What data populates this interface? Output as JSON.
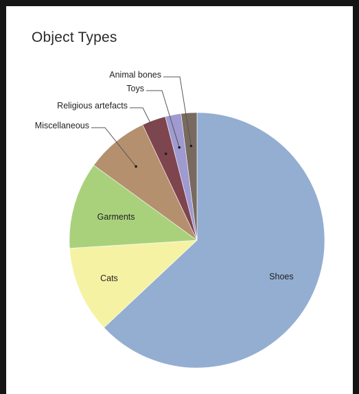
{
  "chart_data": {
    "type": "pie",
    "title": "Object Types",
    "slices": [
      {
        "label": "Shoes",
        "value": 63,
        "color": "#94aed2"
      },
      {
        "label": "Cats",
        "value": 11,
        "color": "#f6f2a3"
      },
      {
        "label": "Garments",
        "value": 11,
        "color": "#a9d17c"
      },
      {
        "label": "Miscellaneous",
        "value": 8,
        "color": "#b4906e"
      },
      {
        "label": "Religious artefacts",
        "value": 3,
        "color": "#7f454f"
      },
      {
        "label": "Toys",
        "value": 2,
        "color": "#9f9ad0"
      },
      {
        "label": "Animal bones",
        "value": 2,
        "color": "#786a5e"
      }
    ]
  }
}
